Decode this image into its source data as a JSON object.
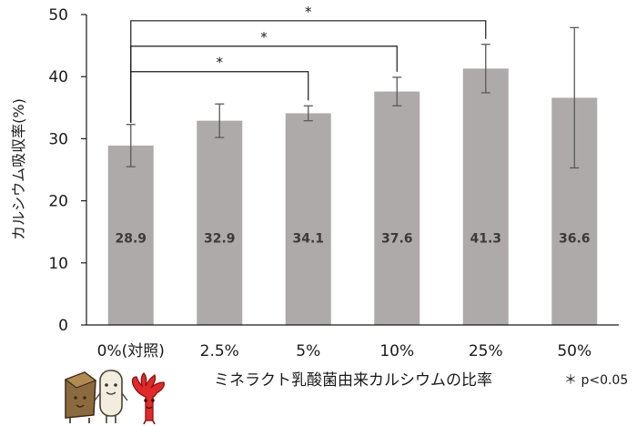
{
  "chart_data": {
    "type": "bar",
    "categories": [
      "0%(対照)",
      "2.5%",
      "5%",
      "10%",
      "25%",
      "50%"
    ],
    "values": [
      28.9,
      32.9,
      34.1,
      37.6,
      41.3,
      36.6
    ],
    "errors": [
      3.4,
      2.7,
      1.2,
      2.3,
      3.9,
      11.3
    ],
    "value_labels": [
      "28.9",
      "32.9",
      "34.1",
      "37.6",
      "41.3",
      "36.6"
    ],
    "ylabel": "カルシウム吸収率(%)",
    "xlabel": "ミネラクト乳酸菌由来カルシウムの比率",
    "ylim": [
      0,
      50
    ],
    "yticks": [
      0,
      10,
      20,
      30,
      40,
      50
    ],
    "bar_color": "#aeaaaa",
    "grid": false,
    "significance": [
      {
        "from": "0%(対照)",
        "to": "5%",
        "label": "*"
      },
      {
        "from": "0%(対照)",
        "to": "10%",
        "label": "*"
      },
      {
        "from": "0%(対照)",
        "to": "25%",
        "label": "*"
      }
    ],
    "note": "＊ p<0.05"
  },
  "colors": {
    "bar": "#aeaaaa",
    "axis": "#1a1a1a",
    "error_bar": "#595959",
    "cheese": "#8a6a3e",
    "tofu": "#f2eddf",
    "seaweed": "#e02a2a"
  },
  "icons": [
    "cheese-icon",
    "tofu-icon",
    "seaweed-icon"
  ]
}
